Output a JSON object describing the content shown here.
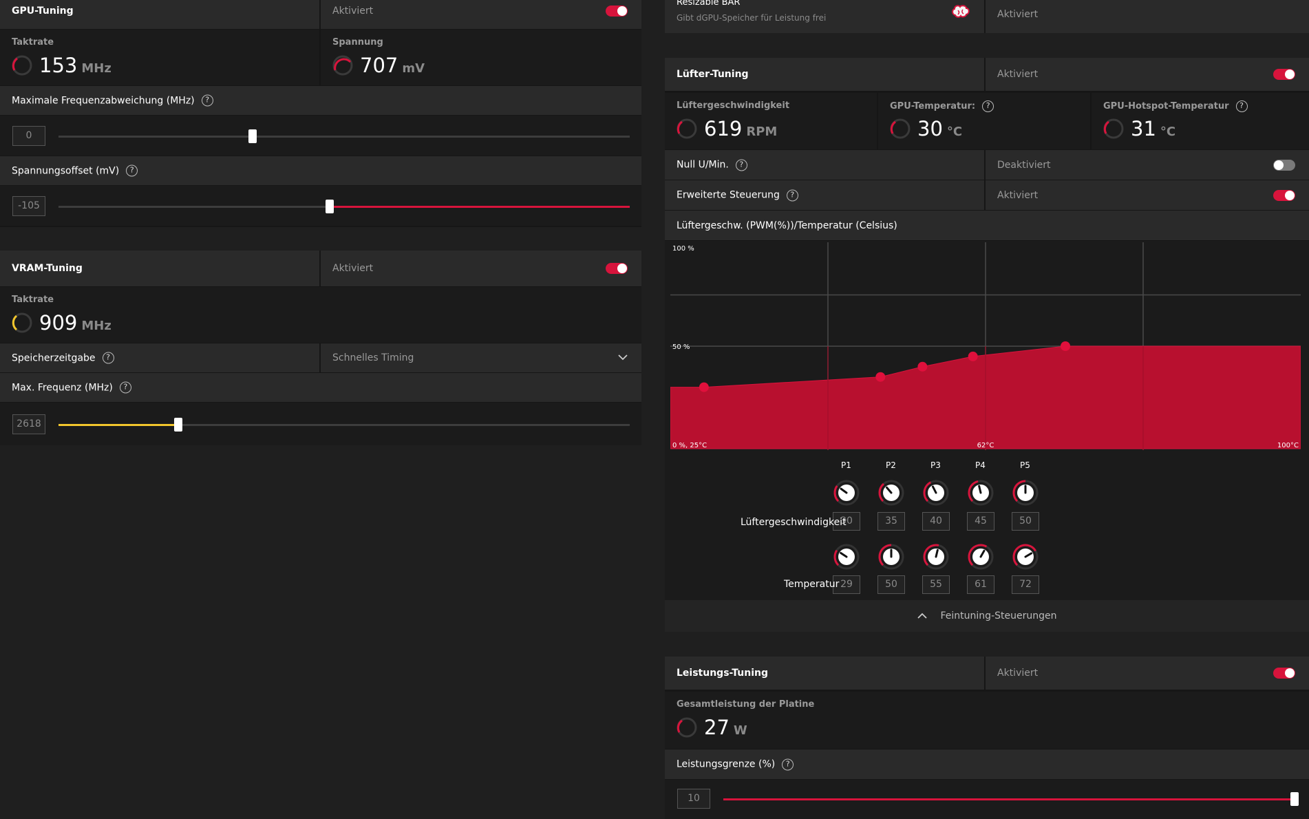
{
  "gpu": {
    "title": "GPU-Tuning",
    "state": "Aktiviert",
    "clock_label": "Taktrate",
    "clock_value": "153",
    "clock_unit": "MHz",
    "voltage_label": "Spannung",
    "voltage_value": "707",
    "voltage_unit": "mV",
    "maxfreq_label": "Maximale Frequenzabweichung (MHz)",
    "maxfreq_value": "0",
    "maxfreq_pct": 0.34,
    "offset_label": "Spannungsoffset (mV)",
    "offset_value": "-105",
    "offset_pct": 0.475
  },
  "vram": {
    "title": "VRAM-Tuning",
    "state": "Aktiviert",
    "clock_label": "Taktrate",
    "clock_value": "909",
    "clock_unit": "MHz",
    "timing_label": "Speicherzeitgabe",
    "timing_value": "Schnelles Timing",
    "maxfreq_label": "Max. Frequenz (MHz)",
    "maxfreq_value": "2618",
    "maxfreq_pct": 0.21
  },
  "rebar": {
    "title": "Resizable BAR",
    "subtitle": "Gibt dGPU-Speicher für Leistung frei",
    "state": "Aktiviert"
  },
  "fan": {
    "title": "Lüfter-Tuning",
    "state": "Aktiviert",
    "speed_label": "Lüftergeschwindigkeit",
    "speed_value": "619",
    "speed_unit": "RPM",
    "temp_label": "GPU-Temperatur:",
    "temp_value": "30",
    "temp_unit": "°C",
    "hotspot_label": "GPU-Hotspot-Temperatur",
    "hotspot_value": "31",
    "hotspot_unit": "°C",
    "zero_label": "Null U/Min.",
    "zero_state": "Deaktiviert",
    "adv_label": "Erweiterte Steuerung",
    "adv_state": "Aktiviert",
    "curve_label": "Lüftergeschw. (PWM(%))/Temperatur (Celsius)",
    "row_speed_label": "Lüftergeschwindigkeit",
    "row_temp_label": "Temperatur",
    "fine_tune_label": "Feintuning-Steuerungen"
  },
  "chart_data": {
    "type": "area",
    "title": "Lüftergeschw. (PWM(%))/Temperatur (Celsius)",
    "xlabel": "Temperatur (Celsius)",
    "ylabel": "Lüftergeschw. (PWM(%))",
    "xlim": [
      25,
      100
    ],
    "ylim": [
      0,
      100
    ],
    "y_tick_top": "100 %",
    "y_tick_mid": "50 %",
    "origin_label": "0 %, 25°C",
    "x_tick_mid": "62°C",
    "x_tick_end": "100°C",
    "points": [
      {
        "name": "P1",
        "temp": 29,
        "speed": 30
      },
      {
        "name": "P2",
        "temp": 50,
        "speed": 35
      },
      {
        "name": "P3",
        "temp": 55,
        "speed": 40
      },
      {
        "name": "P4",
        "temp": 61,
        "speed": 45
      },
      {
        "name": "P5",
        "temp": 72,
        "speed": 50
      }
    ]
  },
  "power": {
    "title": "Leistungs-Tuning",
    "state": "Aktiviert",
    "board_label": "Gesamtleistung der Platine",
    "board_value": "27",
    "board_unit": "W",
    "limit_label": "Leistungsgrenze (%)",
    "limit_value": "10",
    "limit_pct": 1.0
  },
  "colors": {
    "accent": "#d7143c",
    "vram_accent": "#f2c62c"
  }
}
